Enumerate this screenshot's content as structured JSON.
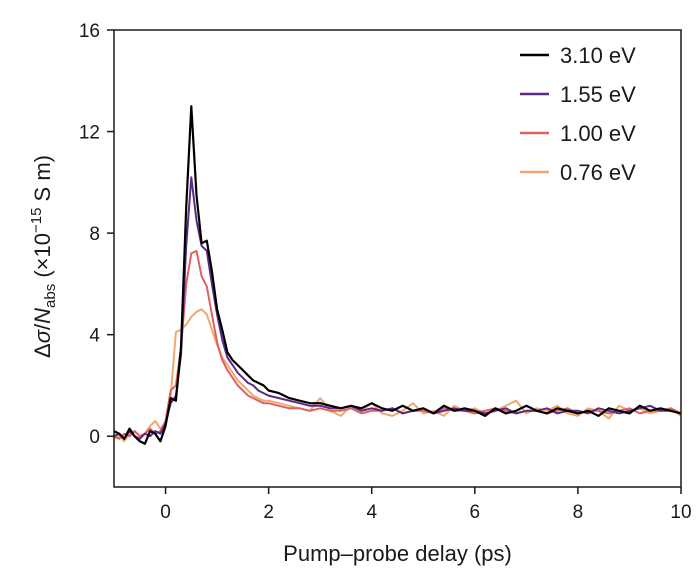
{
  "chart_data": {
    "type": "line",
    "xlabel": "Pump–probe delay (ps)",
    "ylabel": {
      "part1": "Δ",
      "sigma": "σ",
      "slash": "/",
      "N": "N",
      "subscript": "abs",
      "part2": " (×10",
      "superscript": "−15",
      "part3": " S m)"
    },
    "xlim": [
      -1,
      10
    ],
    "ylim": [
      -2,
      16
    ],
    "x_ticks": [
      0,
      2,
      4,
      6,
      8,
      10
    ],
    "x_tick_labels": [
      "0",
      "2",
      "4",
      "6",
      "8",
      "10"
    ],
    "y_ticks": [
      0,
      4,
      8,
      12,
      16
    ],
    "y_tick_labels": [
      "0",
      "4",
      "8",
      "12",
      "16"
    ],
    "legend_position": "top-right",
    "grid": false,
    "series": [
      {
        "name": "3.10 eV",
        "color": "#000000",
        "x": [
          -1.0,
          -0.9,
          -0.8,
          -0.7,
          -0.6,
          -0.5,
          -0.4,
          -0.3,
          -0.2,
          -0.1,
          0.0,
          0.1,
          0.2,
          0.3,
          0.4,
          0.5,
          0.6,
          0.7,
          0.8,
          0.9,
          1.0,
          1.1,
          1.2,
          1.3,
          1.4,
          1.5,
          1.6,
          1.7,
          1.8,
          1.9,
          2.0,
          2.2,
          2.4,
          2.6,
          2.8,
          3.0,
          3.2,
          3.4,
          3.6,
          3.8,
          4.0,
          4.2,
          4.4,
          4.6,
          4.8,
          5.0,
          5.2,
          5.4,
          5.6,
          5.8,
          6.0,
          6.2,
          6.4,
          6.6,
          6.8,
          7.0,
          7.2,
          7.4,
          7.6,
          7.8,
          8.0,
          8.2,
          8.4,
          8.6,
          8.8,
          9.0,
          9.2,
          9.4,
          9.6,
          9.8,
          10.0
        ],
        "y": [
          0.2,
          0.1,
          -0.1,
          0.3,
          0.0,
          -0.2,
          -0.3,
          0.2,
          0.1,
          -0.2,
          0.4,
          1.5,
          1.4,
          3.5,
          9.0,
          13.0,
          9.5,
          7.6,
          7.7,
          6.5,
          5.0,
          4.2,
          3.3,
          3.0,
          2.8,
          2.6,
          2.4,
          2.2,
          2.1,
          2.0,
          1.8,
          1.7,
          1.5,
          1.4,
          1.3,
          1.3,
          1.2,
          1.1,
          1.2,
          1.1,
          1.3,
          1.1,
          1.0,
          1.2,
          1.0,
          1.1,
          0.9,
          1.2,
          1.0,
          1.1,
          1.0,
          0.8,
          1.1,
          0.9,
          1.0,
          1.2,
          1.0,
          0.9,
          1.1,
          1.0,
          0.9,
          1.0,
          0.8,
          1.1,
          1.0,
          0.9,
          1.2,
          1.0,
          1.1,
          1.0,
          0.9
        ]
      },
      {
        "name": "1.55 eV",
        "color": "#5b2a86",
        "x": [
          -1.0,
          -0.9,
          -0.8,
          -0.7,
          -0.6,
          -0.5,
          -0.4,
          -0.3,
          -0.2,
          -0.1,
          0.0,
          0.1,
          0.2,
          0.3,
          0.4,
          0.5,
          0.6,
          0.7,
          0.8,
          0.9,
          1.0,
          1.1,
          1.2,
          1.3,
          1.4,
          1.5,
          1.6,
          1.7,
          1.8,
          1.9,
          2.0,
          2.2,
          2.4,
          2.6,
          2.8,
          3.0,
          3.2,
          3.4,
          3.6,
          3.8,
          4.0,
          4.2,
          4.4,
          4.6,
          4.8,
          5.0,
          5.2,
          5.4,
          5.6,
          5.8,
          6.0,
          6.2,
          6.4,
          6.6,
          6.8,
          7.0,
          7.2,
          7.4,
          7.6,
          7.8,
          8.0,
          8.2,
          8.4,
          8.6,
          8.8,
          9.0,
          9.2,
          9.4,
          9.6,
          9.8,
          10.0
        ],
        "y": [
          0.0,
          0.1,
          -0.1,
          0.2,
          0.0,
          -0.1,
          0.1,
          0.0,
          0.2,
          0.1,
          0.5,
          1.3,
          1.6,
          3.2,
          7.5,
          10.2,
          8.5,
          7.5,
          7.3,
          6.0,
          4.8,
          3.8,
          3.1,
          2.8,
          2.5,
          2.3,
          2.1,
          2.0,
          1.8,
          1.7,
          1.6,
          1.5,
          1.4,
          1.3,
          1.2,
          1.2,
          1.1,
          1.1,
          1.2,
          1.0,
          1.1,
          1.0,
          1.1,
          0.9,
          1.0,
          1.1,
          0.9,
          1.0,
          1.1,
          1.0,
          1.0,
          0.9,
          1.0,
          1.1,
          0.9,
          1.0,
          1.0,
          1.1,
          0.9,
          1.0,
          1.0,
          0.9,
          1.1,
          1.0,
          0.9,
          1.0,
          1.1,
          1.2,
          1.0,
          1.0,
          0.9
        ]
      },
      {
        "name": "1.00 eV",
        "color": "#e06060",
        "x": [
          -1.0,
          -0.9,
          -0.8,
          -0.7,
          -0.6,
          -0.5,
          -0.4,
          -0.3,
          -0.2,
          -0.1,
          0.0,
          0.1,
          0.2,
          0.3,
          0.4,
          0.5,
          0.6,
          0.7,
          0.8,
          0.9,
          1.0,
          1.1,
          1.2,
          1.3,
          1.4,
          1.5,
          1.6,
          1.7,
          1.8,
          1.9,
          2.0,
          2.2,
          2.4,
          2.6,
          2.8,
          3.0,
          3.2,
          3.4,
          3.6,
          3.8,
          4.0,
          4.2,
          4.4,
          4.6,
          4.8,
          5.0,
          5.2,
          5.4,
          5.6,
          5.8,
          6.0,
          6.2,
          6.4,
          6.6,
          6.8,
          7.0,
          7.2,
          7.4,
          7.6,
          7.8,
          8.0,
          8.2,
          8.4,
          8.6,
          8.8,
          9.0,
          9.2,
          9.4,
          9.6,
          9.8,
          10.0
        ],
        "y": [
          0.0,
          -0.1,
          0.1,
          0.0,
          0.2,
          0.0,
          0.1,
          0.3,
          0.1,
          0.2,
          0.6,
          1.8,
          2.0,
          3.5,
          6.0,
          7.2,
          7.3,
          6.3,
          5.9,
          4.8,
          3.7,
          3.0,
          2.6,
          2.3,
          2.0,
          1.8,
          1.6,
          1.5,
          1.4,
          1.3,
          1.3,
          1.2,
          1.1,
          1.1,
          1.0,
          1.1,
          1.0,
          1.0,
          1.1,
          0.9,
          1.0,
          1.0,
          1.1,
          0.9,
          1.0,
          1.0,
          0.9,
          1.1,
          1.0,
          1.0,
          0.9,
          1.0,
          1.1,
          1.0,
          0.9,
          1.0,
          1.0,
          0.9,
          1.0,
          1.1,
          0.9,
          1.0,
          1.0,
          0.9,
          1.0,
          1.1,
          0.9,
          1.0,
          1.0,
          1.1,
          0.9
        ]
      },
      {
        "name": "0.76 eV",
        "color": "#f0a870",
        "x": [
          -1.0,
          -0.9,
          -0.8,
          -0.7,
          -0.6,
          -0.5,
          -0.4,
          -0.3,
          -0.2,
          -0.1,
          0.0,
          0.1,
          0.2,
          0.3,
          0.4,
          0.5,
          0.6,
          0.7,
          0.8,
          0.9,
          1.0,
          1.1,
          1.2,
          1.3,
          1.4,
          1.5,
          1.6,
          1.7,
          1.8,
          1.9,
          2.0,
          2.2,
          2.4,
          2.6,
          2.8,
          3.0,
          3.2,
          3.4,
          3.6,
          3.8,
          4.0,
          4.2,
          4.4,
          4.6,
          4.8,
          5.0,
          5.2,
          5.4,
          5.6,
          5.8,
          6.0,
          6.2,
          6.4,
          6.6,
          6.8,
          7.0,
          7.2,
          7.4,
          7.6,
          7.8,
          8.0,
          8.2,
          8.4,
          8.6,
          8.8,
          9.0,
          9.2,
          9.4,
          9.6,
          9.8,
          10.0
        ],
        "y": [
          -0.1,
          0.0,
          -0.2,
          0.1,
          0.2,
          0.0,
          0.1,
          0.4,
          0.6,
          0.3,
          0.5,
          1.6,
          4.1,
          4.2,
          4.4,
          4.7,
          4.9,
          5.0,
          4.8,
          4.2,
          3.6,
          3.1,
          2.8,
          2.5,
          2.2,
          2.0,
          1.8,
          1.6,
          1.5,
          1.4,
          1.4,
          1.3,
          1.2,
          1.1,
          1.0,
          1.5,
          1.0,
          0.8,
          1.2,
          1.0,
          1.3,
          0.9,
          0.8,
          1.0,
          1.3,
          0.9,
          1.0,
          0.8,
          1.2,
          1.0,
          1.1,
          0.9,
          1.0,
          1.2,
          1.4,
          0.9,
          1.1,
          1.0,
          1.2,
          0.9,
          0.8,
          1.1,
          1.0,
          0.7,
          1.2,
          1.0,
          1.1,
          0.9,
          1.0,
          1.1,
          0.8
        ]
      }
    ]
  }
}
